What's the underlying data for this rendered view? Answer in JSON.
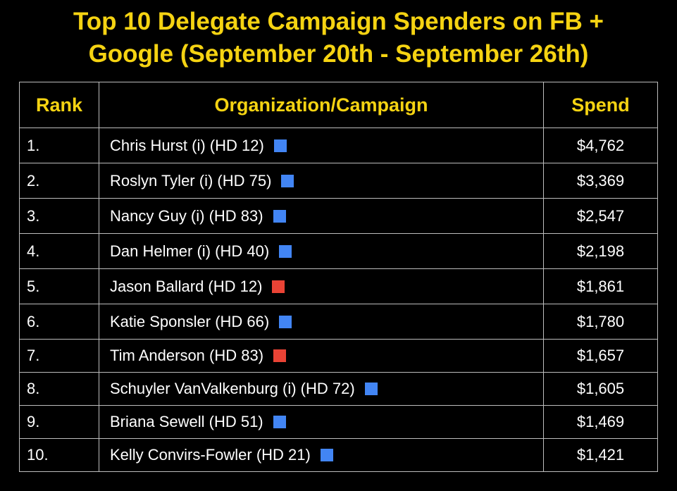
{
  "title": {
    "line1": "Top 10 Delegate Campaign Spenders on FB +",
    "line2": "Google (September 20th - September 26th)"
  },
  "colors": {
    "title": "#f5d312",
    "header_text": "#f5d312",
    "background": "#000000",
    "body_text": "#ffffff",
    "grid": "#bdbdbd",
    "party_blue": "#4285f4",
    "party_red": "#ea4335"
  },
  "chart_data": {
    "type": "table",
    "title": "Top 10 Delegate Campaign Spenders on FB + Google (September 20th - September 26th)",
    "columns": [
      "Rank",
      "Organization/Campaign",
      "Spend"
    ],
    "rows": [
      {
        "rank": "1.",
        "name": "Chris Hurst (i) (HD 12)",
        "party_color": "blue",
        "spend": "$4,762",
        "value": 4762
      },
      {
        "rank": "2.",
        "name": "Roslyn Tyler (i) (HD 75)",
        "party_color": "blue",
        "spend": "$3,369",
        "value": 3369
      },
      {
        "rank": "3.",
        "name": "Nancy Guy (i) (HD 83)",
        "party_color": "blue",
        "spend": "$2,547",
        "value": 2547
      },
      {
        "rank": "4.",
        "name": "Dan Helmer (i) (HD 40)",
        "party_color": "blue",
        "spend": "$2,198",
        "value": 2198
      },
      {
        "rank": "5.",
        "name": "Jason Ballard (HD 12)",
        "party_color": "red",
        "spend": "$1,861",
        "value": 1861
      },
      {
        "rank": "6.",
        "name": "Katie Sponsler (HD 66)",
        "party_color": "blue",
        "spend": "$1,780",
        "value": 1780
      },
      {
        "rank": "7.",
        "name": "Tim Anderson (HD 83)",
        "party_color": "red",
        "spend": "$1,657",
        "value": 1657
      },
      {
        "rank": "8.",
        "name": "Schuyler VanValkenburg (i) (HD 72)",
        "party_color": "blue",
        "spend": "$1,605",
        "value": 1605
      },
      {
        "rank": "9.",
        "name": "Briana Sewell (HD 51)",
        "party_color": "blue",
        "spend": "$1,469",
        "value": 1469
      },
      {
        "rank": "10.",
        "name": "Kelly Convirs-Fowler (HD 21)",
        "party_color": "blue",
        "spend": "$1,421",
        "value": 1421
      }
    ]
  }
}
